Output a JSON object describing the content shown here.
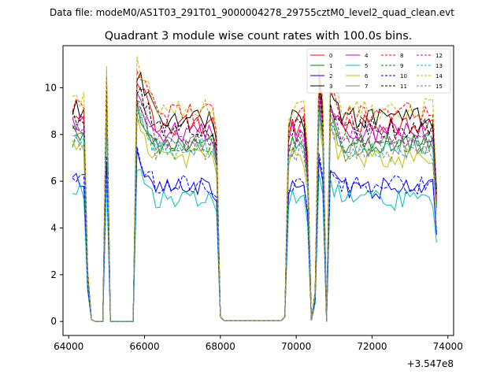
{
  "figure": {
    "suptitle": "Data file: modeM0/AS1T03_291T01_9000004278_29755cztM0_level2_quad_clean.evt"
  },
  "chart_data": {
    "type": "line",
    "title": "Quadrant 3 module wise count rates with 100.0s bins.",
    "xlabel": "",
    "ylabel": "",
    "x_offset_label": "+3.547e8",
    "xlim": [
      63850,
      74150
    ],
    "ylim": [
      -0.6,
      11.8
    ],
    "xticks": [
      64000,
      66000,
      68000,
      70000,
      72000,
      74000
    ],
    "xtick_labels": [
      "64000",
      "66000",
      "68000",
      "70000",
      "72000",
      "74000"
    ],
    "yticks": [
      0,
      2,
      4,
      6,
      8,
      10
    ],
    "ytick_labels": [
      "0",
      "2",
      "4",
      "6",
      "8",
      "10"
    ],
    "grid": false,
    "legend": {
      "placement": "top-right",
      "columns": 4
    },
    "x_start": 64100,
    "x_step": 100,
    "n_points": 97,
    "segments": [
      {
        "start_index": 0,
        "end_index": 8
      },
      {
        "start_index": 17,
        "end_index": 55
      },
      {
        "start_index": 57,
        "end_index": 62
      },
      {
        "start_index": 68,
        "end_index": 96
      }
    ],
    "note_segments": "",
    "series": [
      {
        "name": "0",
        "color": "#ff0000",
        "dash": "solid",
        "level": 8.4
      },
      {
        "name": "1",
        "color": "#008000",
        "dash": "solid",
        "level": 7.6
      },
      {
        "name": "2",
        "color": "#0000ff",
        "dash": "solid",
        "level": 5.7
      },
      {
        "name": "3",
        "color": "#000000",
        "dash": "solid",
        "level": 8.7
      },
      {
        "name": "4",
        "color": "#c000c0",
        "dash": "solid",
        "level": 8.1
      },
      {
        "name": "5",
        "color": "#00bfbf",
        "dash": "solid",
        "level": 5.2
      },
      {
        "name": "6",
        "color": "#bfbf00",
        "dash": "solid",
        "level": 7.0
      },
      {
        "name": "7",
        "color": "#808080",
        "dash": "solid",
        "level": 7.5
      },
      {
        "name": "8",
        "color": "#ff0000",
        "dash": "dashed",
        "level": 8.9
      },
      {
        "name": "9",
        "color": "#008000",
        "dash": "dashed",
        "level": 7.7
      },
      {
        "name": "10",
        "color": "#0000ff",
        "dash": "dashed",
        "level": 5.9
      },
      {
        "name": "11",
        "color": "#000000",
        "dash": "dashed",
        "level": 8.3
      },
      {
        "name": "12",
        "color": "#c000c0",
        "dash": "dashed",
        "level": 7.9
      },
      {
        "name": "13",
        "color": "#00bfbf",
        "dash": "dashed",
        "level": 7.4
      },
      {
        "name": "14",
        "color": "#bfbf00",
        "dash": "dashed",
        "level": 9.1
      },
      {
        "name": "15",
        "color": "#808080",
        "dash": "dashed",
        "level": 7.3
      }
    ]
  }
}
